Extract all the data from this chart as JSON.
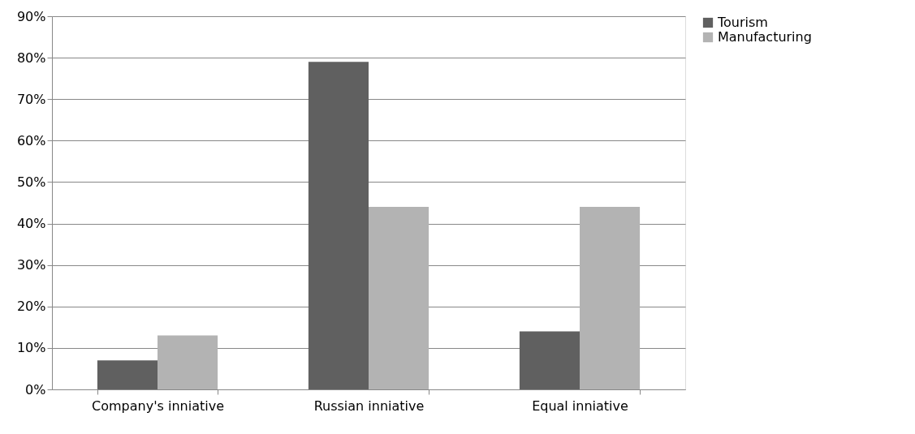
{
  "chart_data": {
    "type": "bar",
    "categories": [
      "Company's inniative",
      "Russian inniative",
      "Equal inniative"
    ],
    "series": [
      {
        "name": "Tourism",
        "color": "#606060",
        "values": [
          7,
          79,
          14
        ]
      },
      {
        "name": "Manufacturing",
        "color": "#b3b3b3",
        "values": [
          13,
          44,
          44
        ]
      }
    ],
    "ylim": [
      0,
      90
    ],
    "yticks": [
      {
        "value": 0,
        "label": "0%"
      },
      {
        "value": 10,
        "label": "10%"
      },
      {
        "value": 20,
        "label": "20%"
      },
      {
        "value": 30,
        "label": "30%"
      },
      {
        "value": 40,
        "label": "40%"
      },
      {
        "value": 50,
        "label": "50%"
      },
      {
        "value": 60,
        "label": "60%"
      },
      {
        "value": 70,
        "label": "70%"
      },
      {
        "value": 80,
        "label": "80%"
      },
      {
        "value": 90,
        "label": "90%"
      }
    ],
    "grid": "y",
    "legend": "right"
  }
}
